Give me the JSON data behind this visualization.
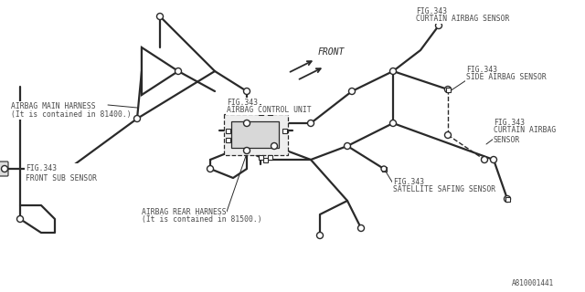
{
  "bg_color": "#ffffff",
  "line_color": "#2a2a2a",
  "text_color": "#4a4a4a",
  "part_number": "A810001441",
  "labels": {
    "airbag_main_harness": "AIRBAG MAIN HARNESS",
    "airbag_main_harness2": "(It is contained in 81400.)",
    "front_sub_sensor": "FIG.343\nFRONT SUB SENSOR",
    "airbag_control_unit_fig": "FIG.343",
    "airbag_control_unit": "AIRBAG CONTROL UNIT",
    "curtain_top_fig": "FIG.343",
    "curtain_top": "CURTAIN AIRBAG SENSOR",
    "side_airbag_fig": "FIG.343",
    "side_airbag": "SIDE AIRBAG SENSOR",
    "curtain_mid_fig": "FIG.343",
    "curtain_mid": "CURTAIN AIRBAG\nSENSOR",
    "rear_harness": "AIRBAG REAR HARNESS",
    "rear_harness2": "(It is contained in 81500.)",
    "satellite_fig": "FIG.343",
    "satellite": "SATELLITE SAFING SENSOR",
    "front_arrow": "FRONT"
  },
  "font_size": 5.8,
  "lw": 1.6
}
